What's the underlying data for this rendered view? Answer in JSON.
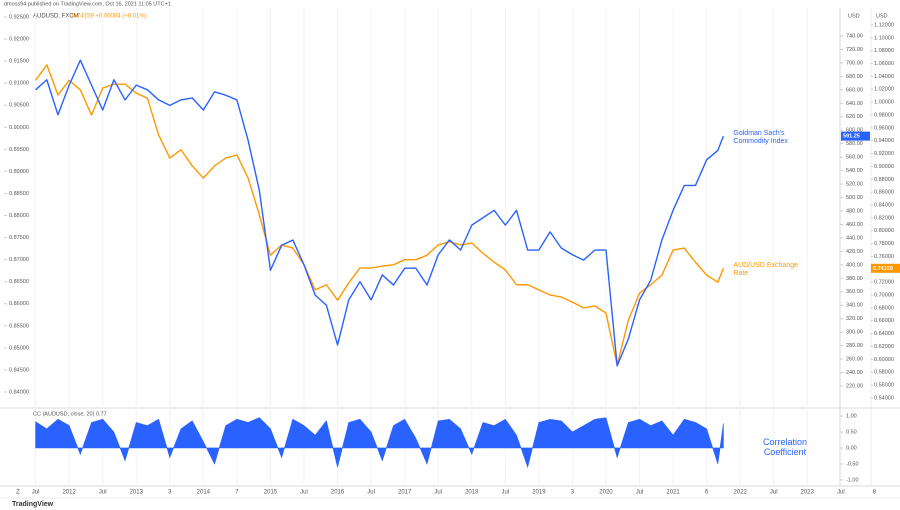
{
  "header": {
    "publisher": "dmoss94 published on TradingView.com, Oct 16, 2021 11:05 UTC+1",
    "symbol": "AUDUSD, FXCM",
    "quote": "0.74159 +0.00084 (+0.01%)"
  },
  "footer": {
    "brand": "TradingView",
    "scale_button": "Z"
  },
  "chart_data": [
    {
      "type": "line",
      "x": [
        "2011-07",
        "2011-09",
        "2011-11",
        "2012-01",
        "2012-03",
        "2012-05",
        "2012-07",
        "2012-09",
        "2012-11",
        "2013-01",
        "2013-03",
        "2013-05",
        "2013-07",
        "2013-09",
        "2013-11",
        "2014-01",
        "2014-03",
        "2014-05",
        "2014-07",
        "2014-09",
        "2014-11",
        "2015-01",
        "2015-03",
        "2015-05",
        "2015-07",
        "2015-09",
        "2015-11",
        "2016-01",
        "2016-03",
        "2016-05",
        "2016-07",
        "2016-09",
        "2016-11",
        "2017-01",
        "2017-03",
        "2017-05",
        "2017-07",
        "2017-09",
        "2017-11",
        "2018-01",
        "2018-03",
        "2018-05",
        "2018-07",
        "2018-09",
        "2018-11",
        "2019-01",
        "2019-03",
        "2019-05",
        "2019-07",
        "2019-09",
        "2019-11",
        "2020-01",
        "2020-03",
        "2020-05",
        "2020-07",
        "2020-09",
        "2020-11",
        "2021-01",
        "2021-03",
        "2021-05",
        "2021-07",
        "2021-09",
        "2021-10"
      ],
      "xlim": [
        "2011-06",
        "2024-02"
      ],
      "xticks": [
        {
          "value": "2011-07",
          "label": "Jul"
        },
        {
          "value": "2012-01",
          "label": "2012"
        },
        {
          "value": "2012-07",
          "label": "Jul"
        },
        {
          "value": "2013-01",
          "label": "2013"
        },
        {
          "value": "2013-07",
          "label": "3"
        },
        {
          "value": "2014-01",
          "label": "2014"
        },
        {
          "value": "2014-07",
          "label": "7"
        },
        {
          "value": "2015-01",
          "label": "2015"
        },
        {
          "value": "2015-07",
          "label": "Jul"
        },
        {
          "value": "2016-01",
          "label": "2016"
        },
        {
          "value": "2016-07",
          "label": "Jul"
        },
        {
          "value": "2017-01",
          "label": "2017"
        },
        {
          "value": "2017-07",
          "label": "Jul"
        },
        {
          "value": "2018-01",
          "label": "2018"
        },
        {
          "value": "2018-07",
          "label": "Jul"
        },
        {
          "value": "2019-01",
          "label": "2019"
        },
        {
          "value": "2019-07",
          "label": "3"
        },
        {
          "value": "2020-01",
          "label": "2020"
        },
        {
          "value": "2020-07",
          "label": "Jul"
        },
        {
          "value": "2021-01",
          "label": "2021"
        },
        {
          "value": "2021-07",
          "label": "6"
        },
        {
          "value": "2022-01",
          "label": "2022"
        },
        {
          "value": "2022-07",
          "label": "Jul"
        },
        {
          "value": "2023-01",
          "label": "2023"
        },
        {
          "value": "2023-07",
          "label": "Jul"
        },
        {
          "value": "2024-01",
          "label": "8"
        }
      ],
      "grid": true,
      "y_axis_label": "USD",
      "ylim": [
        191.8,
        778.6
      ],
      "yticks": [
        {
          "value": 740,
          "label": "740.00"
        },
        {
          "value": 720,
          "label": "720.00"
        },
        {
          "value": 700,
          "label": "700.00"
        },
        {
          "value": 680,
          "label": "680.00"
        },
        {
          "value": 660,
          "label": "660.00"
        },
        {
          "value": 640,
          "label": "640.00"
        },
        {
          "value": 620,
          "label": "620.00"
        },
        {
          "value": 600,
          "label": "600.00"
        },
        {
          "value": 580,
          "label": "580.00"
        },
        {
          "value": 560,
          "label": "560.00"
        },
        {
          "value": 540,
          "label": "540.00"
        },
        {
          "value": 520,
          "label": "520.00"
        },
        {
          "value": 500,
          "label": "500.00"
        },
        {
          "value": 480,
          "label": "480.00"
        },
        {
          "value": 460,
          "label": "460.00"
        },
        {
          "value": 440,
          "label": "440.00"
        },
        {
          "value": 420,
          "label": "420.00"
        },
        {
          "value": 400,
          "label": "400.00"
        },
        {
          "value": 380,
          "label": "380.00"
        },
        {
          "value": 360,
          "label": "360.00"
        },
        {
          "value": 340,
          "label": "340.00"
        },
        {
          "value": 320,
          "label": "320.00"
        },
        {
          "value": 300,
          "label": "300.00"
        },
        {
          "value": 280,
          "label": "280.00"
        },
        {
          "value": 260,
          "label": "260.00"
        },
        {
          "value": 240,
          "label": "240.00"
        },
        {
          "value": 220,
          "label": "220.00"
        }
      ],
      "y2_axis_label": "USD",
      "y2lim": [
        0.529,
        1.1433
      ],
      "y2ticks": [
        {
          "value": 1.12,
          "label": "1.12000"
        },
        {
          "value": 1.1,
          "label": "1.10000"
        },
        {
          "value": 1.08,
          "label": "1.08000"
        },
        {
          "value": 1.06,
          "label": "1.06000"
        },
        {
          "value": 1.04,
          "label": "1.04000"
        },
        {
          "value": 1.02,
          "label": "1.02000"
        },
        {
          "value": 1.0,
          "label": "1.00000"
        },
        {
          "value": 0.98,
          "label": "0.98000"
        },
        {
          "value": 0.96,
          "label": "0.96000"
        },
        {
          "value": 0.94,
          "label": "0.94000"
        },
        {
          "value": 0.92,
          "label": "0.92000"
        },
        {
          "value": 0.9,
          "label": "0.90000"
        },
        {
          "value": 0.88,
          "label": "0.88000"
        },
        {
          "value": 0.86,
          "label": "0.86000"
        },
        {
          "value": 0.84,
          "label": "0.84000"
        },
        {
          "value": 0.82,
          "label": "0.82000"
        },
        {
          "value": 0.8,
          "label": "0.80000"
        },
        {
          "value": 0.78,
          "label": "0.78000"
        },
        {
          "value": 0.76,
          "label": "0.76000"
        },
        {
          "value": 0.74,
          "label": "0.74000"
        },
        {
          "value": 0.72,
          "label": "0.72000"
        },
        {
          "value": 0.7,
          "label": "0.70000"
        },
        {
          "value": 0.68,
          "label": "0.68000"
        },
        {
          "value": 0.66,
          "label": "0.66000"
        },
        {
          "value": 0.64,
          "label": "0.64000"
        },
        {
          "value": 0.62,
          "label": "0.62000"
        },
        {
          "value": 0.6,
          "label": "0.60000"
        },
        {
          "value": 0.58,
          "label": "0.58000"
        },
        {
          "value": 0.56,
          "label": "0.56000"
        },
        {
          "value": 0.54,
          "label": "0.54000"
        }
      ],
      "yleftlim": [
        0.83705,
        0.92659
      ],
      "yleftticks": [
        {
          "value": 0.925,
          "label": "0.92500"
        },
        {
          "value": 0.92,
          "label": "0.92000"
        },
        {
          "value": 0.915,
          "label": "0.91500"
        },
        {
          "value": 0.91,
          "label": "0.91000"
        },
        {
          "value": 0.905,
          "label": "0.90500"
        },
        {
          "value": 0.9,
          "label": "0.90000"
        },
        {
          "value": 0.895,
          "label": "0.89500"
        },
        {
          "value": 0.89,
          "label": "0.89000"
        },
        {
          "value": 0.885,
          "label": "0.88500"
        },
        {
          "value": 0.88,
          "label": "0.88000"
        },
        {
          "value": 0.875,
          "label": "0.87500"
        },
        {
          "value": 0.87,
          "label": "0.87000"
        },
        {
          "value": 0.865,
          "label": "0.86500"
        },
        {
          "value": 0.86,
          "label": "0.86000"
        },
        {
          "value": 0.855,
          "label": "0.85500"
        },
        {
          "value": 0.85,
          "label": "0.85000"
        },
        {
          "value": 0.845,
          "label": "0.84500"
        },
        {
          "value": 0.84,
          "label": "0.84000"
        }
      ],
      "series": [
        {
          "name": "Goldman Sach's Commodity Index",
          "color": "#2962ff",
          "axis": "y",
          "values": [
            660,
            675,
            623,
            667,
            704,
            667,
            630,
            675,
            645,
            667,
            660,
            645,
            637,
            645,
            648,
            630,
            657,
            652,
            645,
            585,
            511,
            392,
            429,
            437,
            400,
            355,
            340,
            281,
            348,
            375,
            348,
            385,
            370,
            395,
            395,
            370,
            415,
            437,
            422,
            459,
            470,
            481,
            459,
            481,
            422,
            422,
            449,
            425,
            415,
            407,
            422,
            422,
            250,
            290,
            348,
            377,
            437,
            481,
            518,
            518,
            556,
            570,
            591.25
          ]
        },
        {
          "name": "AUD/USD Exchange Rate",
          "color": "#ff9800",
          "axis": "y2",
          "values": [
            1.034,
            1.058,
            1.011,
            1.034,
            1.019,
            0.98,
            1.022,
            1.028,
            1.028,
            1.014,
            1.006,
            0.949,
            0.913,
            0.926,
            0.901,
            0.882,
            0.901,
            0.913,
            0.918,
            0.882,
            0.825,
            0.762,
            0.778,
            0.773,
            0.747,
            0.708,
            0.716,
            0.692,
            0.719,
            0.742,
            0.742,
            0.745,
            0.747,
            0.755,
            0.755,
            0.762,
            0.778,
            0.783,
            0.778,
            0.781,
            0.765,
            0.751,
            0.739,
            0.716,
            0.716,
            0.708,
            0.7,
            0.697,
            0.689,
            0.68,
            0.683,
            0.672,
            0.591,
            0.661,
            0.703,
            0.716,
            0.731,
            0.77,
            0.773,
            0.751,
            0.731,
            0.72,
            0.74159
          ]
        }
      ]
    },
    {
      "type": "area",
      "title": "CC (AUDUSD, close, 20) 0.77",
      "annotation": "Correlation Coefficient",
      "color": "#2962ff",
      "x": [
        "2011-07",
        "2011-09",
        "2011-11",
        "2012-01",
        "2012-03",
        "2012-05",
        "2012-07",
        "2012-09",
        "2012-11",
        "2013-01",
        "2013-03",
        "2013-05",
        "2013-07",
        "2013-09",
        "2013-11",
        "2014-01",
        "2014-03",
        "2014-05",
        "2014-07",
        "2014-09",
        "2014-11",
        "2015-01",
        "2015-03",
        "2015-05",
        "2015-07",
        "2015-09",
        "2015-11",
        "2016-01",
        "2016-03",
        "2016-05",
        "2016-07",
        "2016-09",
        "2016-11",
        "2017-01",
        "2017-03",
        "2017-05",
        "2017-07",
        "2017-09",
        "2017-11",
        "2018-01",
        "2018-03",
        "2018-05",
        "2018-07",
        "2018-09",
        "2018-11",
        "2019-01",
        "2019-03",
        "2019-05",
        "2019-07",
        "2019-09",
        "2019-11",
        "2020-01",
        "2020-03",
        "2020-05",
        "2020-07",
        "2020-09",
        "2020-11",
        "2021-01",
        "2021-03",
        "2021-05",
        "2021-07",
        "2021-09",
        "2021-10"
      ],
      "xlim": [
        "2011-06",
        "2024-02"
      ],
      "values": [
        0.82,
        0.6,
        0.9,
        0.7,
        -0.2,
        0.8,
        0.9,
        0.5,
        -0.4,
        0.8,
        0.7,
        0.9,
        -0.3,
        0.6,
        0.85,
        0.2,
        -0.5,
        0.7,
        0.9,
        0.8,
        0.95,
        0.6,
        -0.3,
        0.9,
        0.7,
        0.4,
        0.85,
        -0.6,
        0.8,
        0.9,
        0.5,
        -0.4,
        0.7,
        0.9,
        0.3,
        -0.5,
        0.85,
        0.9,
        0.6,
        -0.2,
        0.8,
        0.7,
        0.9,
        0.4,
        -0.6,
        0.8,
        0.9,
        0.85,
        0.5,
        0.7,
        0.9,
        0.95,
        -0.3,
        0.8,
        0.9,
        0.7,
        0.85,
        0.4,
        0.9,
        0.8,
        0.6,
        -0.5,
        0.77
      ],
      "ylim": [
        -1.16,
        1.19
      ],
      "yticks": [
        {
          "value": 1,
          "label": "1.00"
        },
        {
          "value": 0.5,
          "label": "0.50"
        },
        {
          "value": 0,
          "label": "0.00"
        },
        {
          "value": -0.5,
          "label": "-0.50"
        },
        {
          "value": -1,
          "label": "-1.00"
        }
      ]
    }
  ]
}
